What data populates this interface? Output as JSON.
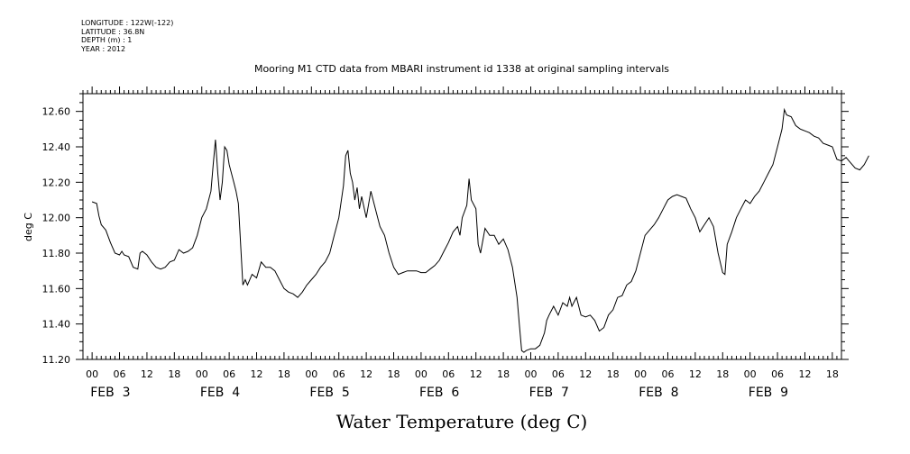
{
  "meta": {
    "longitude": "LONGITUDE : 122W(-122)",
    "latitude": "LATITUDE : 36.8N",
    "depth": "DEPTH (m) : 1",
    "year": "YEAR : 2012"
  },
  "chart_data": {
    "type": "line",
    "title": "Mooring M1 CTD data from MBARI instrument id 1338 at original sampling intervals",
    "xlabel": "Water Temperature (deg C)",
    "ylabel": "deg C",
    "ylim": [
      11.2,
      12.7
    ],
    "yticks": [
      "11.20",
      "11.40",
      "11.60",
      "11.80",
      "12.00",
      "12.20",
      "12.40",
      "12.60"
    ],
    "xlim_hours": [
      -2,
      164
    ],
    "x_units": "hours from FEB 3 00:00",
    "hour_ticks": [
      "00",
      "06",
      "12",
      "18",
      "00",
      "06",
      "12",
      "18",
      "00",
      "06",
      "12",
      "18",
      "00",
      "06",
      "12",
      "18",
      "00",
      "06",
      "12",
      "18",
      "00",
      "06",
      "12",
      "18",
      "00",
      "06",
      "12",
      "18"
    ],
    "day_labels": [
      "FEB  3",
      "FEB  4",
      "FEB  5",
      "FEB  6",
      "FEB  7",
      "FEB  8",
      "FEB  9"
    ],
    "grid": false,
    "series": [
      {
        "color": "#000000",
        "points": [
          [
            0,
            12.09
          ],
          [
            1,
            12.08
          ],
          [
            1.5,
            12.01
          ],
          [
            2,
            11.96
          ],
          [
            3,
            11.93
          ],
          [
            4,
            11.86
          ],
          [
            5,
            11.8
          ],
          [
            6,
            11.79
          ],
          [
            6.5,
            11.81
          ],
          [
            7,
            11.79
          ],
          [
            8,
            11.78
          ],
          [
            9,
            11.72
          ],
          [
            10,
            11.71
          ],
          [
            10.5,
            11.8
          ],
          [
            11,
            11.81
          ],
          [
            12,
            11.79
          ],
          [
            13,
            11.75
          ],
          [
            14,
            11.72
          ],
          [
            15,
            11.71
          ],
          [
            16,
            11.72
          ],
          [
            17,
            11.75
          ],
          [
            18,
            11.76
          ],
          [
            19,
            11.82
          ],
          [
            20,
            11.8
          ],
          [
            21,
            11.81
          ],
          [
            22,
            11.83
          ],
          [
            23,
            11.9
          ],
          [
            24,
            12.0
          ],
          [
            25,
            12.05
          ],
          [
            26,
            12.15
          ],
          [
            26.5,
            12.3
          ],
          [
            27,
            12.44
          ],
          [
            27.5,
            12.25
          ],
          [
            28,
            12.1
          ],
          [
            28.5,
            12.2
          ],
          [
            29,
            12.4
          ],
          [
            29.5,
            12.38
          ],
          [
            30,
            12.3
          ],
          [
            31,
            12.2
          ],
          [
            31.5,
            12.15
          ],
          [
            32,
            12.08
          ],
          [
            33,
            11.62
          ],
          [
            33.5,
            11.65
          ],
          [
            34,
            11.62
          ],
          [
            35,
            11.68
          ],
          [
            36,
            11.66
          ],
          [
            37,
            11.75
          ],
          [
            38,
            11.72
          ],
          [
            39,
            11.72
          ],
          [
            40,
            11.7
          ],
          [
            41,
            11.65
          ],
          [
            42,
            11.6
          ],
          [
            43,
            11.58
          ],
          [
            44,
            11.57
          ],
          [
            45,
            11.55
          ],
          [
            46,
            11.58
          ],
          [
            47,
            11.62
          ],
          [
            48,
            11.65
          ],
          [
            49,
            11.68
          ],
          [
            50,
            11.72
          ],
          [
            51,
            11.75
          ],
          [
            52,
            11.8
          ],
          [
            53,
            11.9
          ],
          [
            54,
            12.0
          ],
          [
            55,
            12.18
          ],
          [
            55.5,
            12.35
          ],
          [
            56,
            12.38
          ],
          [
            56.5,
            12.25
          ],
          [
            57,
            12.2
          ],
          [
            57.5,
            12.1
          ],
          [
            58,
            12.17
          ],
          [
            58.5,
            12.05
          ],
          [
            59,
            12.12
          ],
          [
            60,
            12.0
          ],
          [
            61,
            12.15
          ],
          [
            62,
            12.05
          ],
          [
            63,
            11.95
          ],
          [
            64,
            11.9
          ],
          [
            65,
            11.8
          ],
          [
            66,
            11.72
          ],
          [
            67,
            11.68
          ],
          [
            68,
            11.69
          ],
          [
            69,
            11.7
          ],
          [
            70,
            11.7
          ],
          [
            71,
            11.7
          ],
          [
            72,
            11.69
          ],
          [
            73,
            11.69
          ],
          [
            74,
            11.71
          ],
          [
            75,
            11.73
          ],
          [
            76,
            11.76
          ],
          [
            77,
            11.81
          ],
          [
            78,
            11.86
          ],
          [
            79,
            11.92
          ],
          [
            80,
            11.95
          ],
          [
            80.5,
            11.9
          ],
          [
            81,
            12.0
          ],
          [
            82,
            12.07
          ],
          [
            82.5,
            12.22
          ],
          [
            83,
            12.1
          ],
          [
            84,
            12.05
          ],
          [
            84.5,
            11.85
          ],
          [
            85,
            11.8
          ],
          [
            86,
            11.94
          ],
          [
            87,
            11.9
          ],
          [
            88,
            11.9
          ],
          [
            89,
            11.85
          ],
          [
            90,
            11.88
          ],
          [
            91,
            11.82
          ],
          [
            92,
            11.72
          ],
          [
            93,
            11.55
          ],
          [
            93.5,
            11.4
          ],
          [
            94,
            11.25
          ],
          [
            94.5,
            11.24
          ],
          [
            95,
            11.25
          ],
          [
            96,
            11.26
          ],
          [
            97,
            11.26
          ],
          [
            98,
            11.28
          ],
          [
            99,
            11.35
          ],
          [
            99.5,
            11.42
          ],
          [
            100,
            11.45
          ],
          [
            101,
            11.5
          ],
          [
            102,
            11.45
          ],
          [
            103,
            11.52
          ],
          [
            104,
            11.5
          ],
          [
            104.5,
            11.55
          ],
          [
            105,
            11.5
          ],
          [
            106,
            11.55
          ],
          [
            107,
            11.45
          ],
          [
            108,
            11.44
          ],
          [
            109,
            11.45
          ],
          [
            110,
            11.42
          ],
          [
            111,
            11.36
          ],
          [
            112,
            11.38
          ],
          [
            113,
            11.45
          ],
          [
            114,
            11.48
          ],
          [
            115,
            11.55
          ],
          [
            116,
            11.56
          ],
          [
            117,
            11.62
          ],
          [
            118,
            11.64
          ],
          [
            119,
            11.7
          ],
          [
            120,
            11.8
          ],
          [
            121,
            11.9
          ],
          [
            122,
            11.93
          ],
          [
            123,
            11.96
          ],
          [
            124,
            12.0
          ],
          [
            125,
            12.05
          ],
          [
            126,
            12.1
          ],
          [
            127,
            12.12
          ],
          [
            128,
            12.13
          ],
          [
            129,
            12.12
          ],
          [
            130,
            12.11
          ],
          [
            131,
            12.05
          ],
          [
            132,
            12.0
          ],
          [
            133,
            11.92
          ],
          [
            134,
            11.96
          ],
          [
            135,
            12.0
          ],
          [
            136,
            11.95
          ],
          [
            137,
            11.8
          ],
          [
            138,
            11.69
          ],
          [
            138.5,
            11.68
          ],
          [
            139,
            11.85
          ],
          [
            140,
            11.92
          ],
          [
            141,
            12.0
          ],
          [
            142,
            12.05
          ],
          [
            143,
            12.1
          ],
          [
            144,
            12.08
          ],
          [
            145,
            12.12
          ],
          [
            146,
            12.15
          ],
          [
            147,
            12.2
          ],
          [
            148,
            12.25
          ],
          [
            149,
            12.3
          ],
          [
            150,
            12.4
          ],
          [
            151,
            12.5
          ],
          [
            151.5,
            12.61
          ],
          [
            152,
            12.58
          ],
          [
            153,
            12.57
          ],
          [
            154,
            12.52
          ],
          [
            155,
            12.5
          ],
          [
            156,
            12.49
          ],
          [
            157,
            12.48
          ],
          [
            158,
            12.46
          ],
          [
            159,
            12.45
          ],
          [
            160,
            12.42
          ],
          [
            161,
            12.41
          ],
          [
            162,
            12.4
          ],
          [
            163,
            12.33
          ],
          [
            164,
            12.32
          ],
          [
            165,
            12.34
          ],
          [
            166,
            12.31
          ],
          [
            167,
            12.28
          ],
          [
            168,
            12.27
          ],
          [
            169,
            12.3
          ],
          [
            170,
            12.35
          ]
        ]
      }
    ]
  }
}
